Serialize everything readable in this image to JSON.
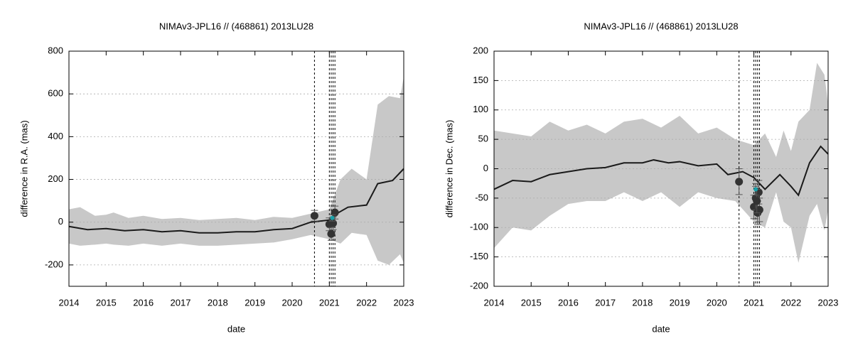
{
  "chart_data": [
    {
      "type": "line",
      "title": "NIMAv3-JPL16 // (468861) 2013LU28",
      "xlabel": "date",
      "ylabel": "difference in R.A. (mas)",
      "xlim": [
        2014,
        2023
      ],
      "xticks": [
        2014,
        2015,
        2016,
        2017,
        2018,
        2019,
        2020,
        2021,
        2022,
        2023
      ],
      "ylim": [
        -300,
        800
      ],
      "yticks": [
        -200,
        0,
        200,
        400,
        600,
        800
      ],
      "grid": true,
      "band": {
        "color": "#c8c8c8",
        "x": [
          2014,
          2014.3,
          2014.7,
          2015,
          2015.2,
          2015.6,
          2016,
          2016.5,
          2017,
          2017.5,
          2018,
          2018.5,
          2019,
          2019.5,
          2020,
          2020.5,
          2021,
          2021.3,
          2021.6,
          2022,
          2022.3,
          2022.6,
          2022.9,
          2023
        ],
        "upper": [
          60,
          70,
          30,
          35,
          45,
          20,
          30,
          15,
          20,
          10,
          15,
          20,
          10,
          25,
          20,
          40,
          60,
          200,
          250,
          200,
          550,
          590,
          580,
          680
        ],
        "lower": [
          -100,
          -110,
          -105,
          -100,
          -105,
          -110,
          -100,
          -110,
          -100,
          -110,
          -110,
          -105,
          -100,
          -95,
          -80,
          -60,
          -80,
          -100,
          -50,
          -60,
          -180,
          -200,
          -150,
          -190
        ]
      },
      "line": {
        "color": "#1a1a1a",
        "x": [
          2014,
          2014.5,
          2015,
          2015.5,
          2016,
          2016.5,
          2017,
          2017.5,
          2018,
          2018.5,
          2019,
          2019.5,
          2020,
          2020.5,
          2021,
          2021.2,
          2021.5,
          2022,
          2022.3,
          2022.7,
          2023
        ],
        "values": [
          -20,
          -35,
          -30,
          -40,
          -35,
          -45,
          -40,
          -50,
          -50,
          -45,
          -45,
          -35,
          -30,
          0,
          10,
          40,
          70,
          80,
          180,
          195,
          250
        ]
      },
      "series": [
        {
          "color": "#333333",
          "x": [
            2020.6,
            2021.0,
            2021.05,
            2021.1,
            2021.15
          ],
          "values": [
            30,
            -10,
            -55,
            -5,
            45
          ],
          "errors": [
            25,
            30,
            30,
            30,
            30
          ]
        },
        {
          "color": "#1aa0a8",
          "x": [
            2021.08
          ],
          "values": [
            20
          ],
          "errors": [
            15
          ]
        }
      ],
      "vlines": [
        2020.6,
        2021.0,
        2021.05,
        2021.1,
        2021.15
      ]
    },
    {
      "type": "line",
      "title": "NIMAv3-JPL16 // (468861) 2013LU28",
      "xlabel": "date",
      "ylabel": "difference in Dec. (mas)",
      "xlim": [
        2014,
        2023
      ],
      "xticks": [
        2014,
        2015,
        2016,
        2017,
        2018,
        2019,
        2020,
        2021,
        2022,
        2023
      ],
      "ylim": [
        -200,
        200
      ],
      "yticks": [
        -200,
        -150,
        -100,
        -50,
        0,
        50,
        100,
        150,
        200
      ],
      "grid": true,
      "band": {
        "color": "#c8c8c8",
        "x": [
          2014,
          2014.5,
          2015,
          2015.5,
          2016,
          2016.5,
          2017,
          2017.5,
          2018,
          2018.5,
          2019,
          2019.5,
          2020,
          2020.5,
          2021,
          2021.3,
          2021.6,
          2021.8,
          2022,
          2022.2,
          2022.5,
          2022.7,
          2022.9,
          2023
        ],
        "upper": [
          65,
          60,
          55,
          80,
          65,
          75,
          60,
          80,
          85,
          70,
          90,
          60,
          70,
          50,
          40,
          60,
          20,
          65,
          30,
          80,
          100,
          180,
          160,
          110
        ],
        "lower": [
          -135,
          -100,
          -105,
          -80,
          -60,
          -55,
          -55,
          -40,
          -55,
          -40,
          -65,
          -40,
          -50,
          -55,
          -90,
          -100,
          -40,
          -90,
          -100,
          -160,
          -80,
          -60,
          -105,
          -70
        ]
      },
      "line": {
        "color": "#1a1a1a",
        "x": [
          2014,
          2014.5,
          2015,
          2015.5,
          2016,
          2016.5,
          2017,
          2017.5,
          2018,
          2018.3,
          2018.7,
          2019,
          2019.5,
          2020,
          2020.3,
          2020.7,
          2021,
          2021.3,
          2021.7,
          2022,
          2022.2,
          2022.5,
          2022.8,
          2023
        ],
        "values": [
          -35,
          -20,
          -22,
          -10,
          -5,
          0,
          2,
          10,
          10,
          15,
          10,
          12,
          5,
          8,
          -10,
          -5,
          -15,
          -35,
          -10,
          -30,
          -45,
          10,
          38,
          25
        ]
      },
      "series": [
        {
          "color": "#333333",
          "x": [
            2020.6,
            2021.0,
            2021.05,
            2021.1,
            2021.13,
            2021.15,
            2021.08
          ],
          "values": [
            -22,
            -65,
            -50,
            -75,
            -40,
            -70,
            -55
          ],
          "errors": [
            22,
            20,
            20,
            20,
            20,
            20,
            20
          ]
        },
        {
          "color": "#1aa0a8",
          "x": [
            2021.05
          ],
          "values": [
            -35
          ],
          "errors": [
            10
          ]
        }
      ],
      "vlines": [
        2020.6,
        2021.0,
        2021.05,
        2021.1,
        2021.15
      ]
    }
  ]
}
